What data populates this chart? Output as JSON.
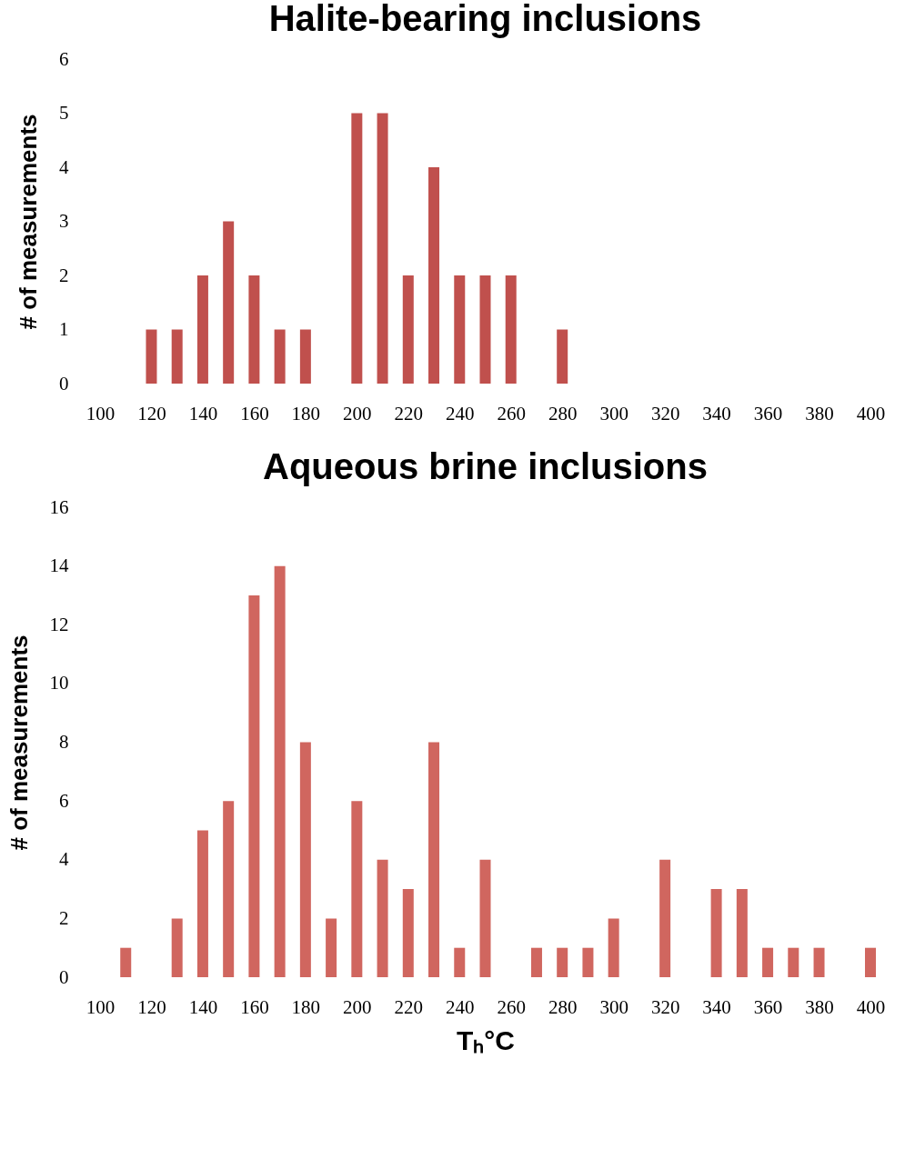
{
  "chart_data": [
    {
      "type": "bar",
      "title": "Halite-bearing inclusions",
      "ylabel": "# of measurements",
      "color": "#c0504d",
      "x": [
        120,
        130,
        140,
        150,
        160,
        170,
        180,
        200,
        210,
        220,
        230,
        240,
        250,
        260,
        280
      ],
      "values": [
        1,
        1,
        2,
        3,
        2,
        1,
        1,
        5,
        5,
        2,
        4,
        2,
        2,
        2,
        1
      ],
      "xlim": [
        100,
        400
      ],
      "xticks": [
        100,
        120,
        140,
        160,
        180,
        200,
        220,
        240,
        260,
        280,
        300,
        320,
        340,
        360,
        380,
        400
      ],
      "ylim": [
        0,
        6
      ],
      "yticks": [
        0,
        1,
        2,
        3,
        4,
        5,
        6
      ]
    },
    {
      "type": "bar",
      "title": "Aqueous brine inclusions",
      "ylabel": "# of measurements",
      "xlabel": "Tₕ°C",
      "color": "#d0665f",
      "x": [
        110,
        130,
        140,
        150,
        160,
        170,
        180,
        190,
        200,
        210,
        220,
        230,
        240,
        250,
        270,
        280,
        290,
        300,
        320,
        340,
        350,
        360,
        370,
        380,
        400
      ],
      "values": [
        1,
        2,
        5,
        6,
        13,
        14,
        8,
        2,
        6,
        4,
        3,
        8,
        1,
        4,
        1,
        1,
        1,
        2,
        4,
        3,
        3,
        1,
        1,
        1,
        1
      ],
      "xlim": [
        100,
        400
      ],
      "xticks": [
        100,
        120,
        140,
        160,
        180,
        200,
        220,
        240,
        260,
        280,
        300,
        320,
        340,
        360,
        380,
        400
      ],
      "ylim": [
        0,
        16
      ],
      "yticks": [
        0,
        2,
        4,
        6,
        8,
        10,
        12,
        14,
        16
      ]
    }
  ]
}
